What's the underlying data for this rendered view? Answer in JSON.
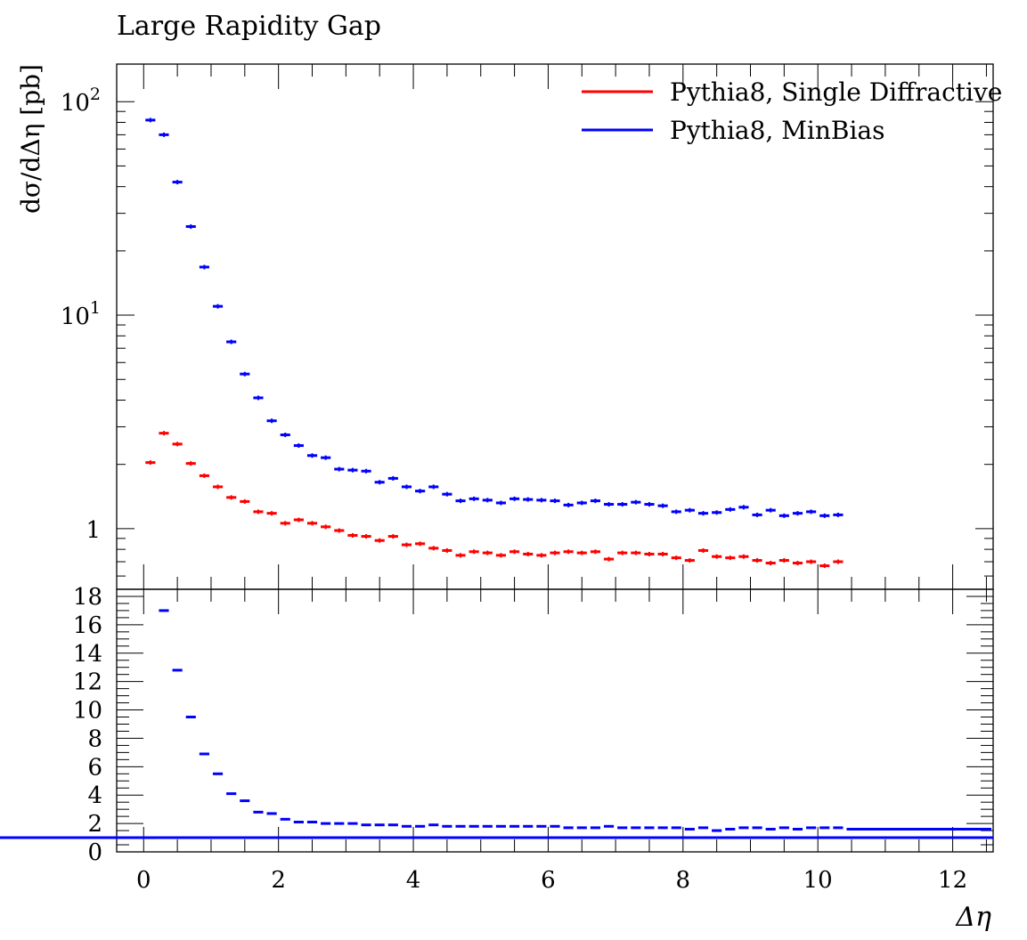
{
  "title": "Large Rapidity Gap",
  "chart_data": {
    "type": "line",
    "title": "Large Rapidity Gap",
    "xlabel": "Δη",
    "ylabel": "dσ/dΔη [pb]",
    "xlim": [
      -0.4,
      12.6
    ],
    "x_ticks": [
      "0",
      "2",
      "4",
      "6",
      "8",
      "10",
      "12"
    ],
    "legend_position": "top-right",
    "main": {
      "yscale": "log",
      "ylim": [
        0.52,
        150
      ],
      "y_ticks": [
        {
          "value": 1,
          "label": "1"
        },
        {
          "value": 10,
          "label": "10^1"
        },
        {
          "value": 100,
          "label": "10^2"
        }
      ],
      "bin_edges": [
        0.0,
        0.2,
        0.4,
        0.6,
        0.8,
        1.0,
        1.2,
        1.4,
        1.6,
        1.8,
        2.0,
        2.2,
        2.4,
        2.6,
        2.8,
        3.0,
        3.2,
        3.4,
        3.6,
        3.8,
        4.0,
        4.2,
        4.4,
        4.6,
        4.8,
        5.0,
        5.2,
        5.4,
        5.6,
        5.8,
        6.0,
        6.2,
        6.4,
        6.6,
        6.8,
        7.0,
        7.2,
        7.4,
        7.6,
        7.8,
        8.0,
        8.2,
        8.4,
        8.6,
        8.8,
        9.0,
        9.2,
        9.4,
        9.6,
        9.8,
        10.0,
        10.2,
        10.4
      ],
      "series": [
        {
          "name": "Pythia8, Single Diffractive",
          "color": "#ff0000",
          "values": [
            2.04,
            2.8,
            2.49,
            2.02,
            1.77,
            1.57,
            1.4,
            1.34,
            1.2,
            1.18,
            1.06,
            1.1,
            1.06,
            1.02,
            0.98,
            0.93,
            0.92,
            0.88,
            0.92,
            0.84,
            0.85,
            0.81,
            0.79,
            0.75,
            0.78,
            0.77,
            0.75,
            0.78,
            0.76,
            0.75,
            0.77,
            0.78,
            0.77,
            0.78,
            0.72,
            0.77,
            0.77,
            0.76,
            0.76,
            0.73,
            0.71,
            0.79,
            0.74,
            0.73,
            0.74,
            0.71,
            0.69,
            0.71,
            0.69,
            0.7,
            0.67,
            0.7
          ]
        },
        {
          "name": "Pythia8, MinBias",
          "color": "#0000ff",
          "values": [
            82,
            70,
            42,
            26,
            16.8,
            11,
            7.5,
            5.3,
            4.1,
            3.2,
            2.75,
            2.45,
            2.2,
            2.15,
            1.9,
            1.88,
            1.86,
            1.65,
            1.72,
            1.57,
            1.5,
            1.57,
            1.45,
            1.35,
            1.38,
            1.36,
            1.32,
            1.38,
            1.37,
            1.36,
            1.35,
            1.29,
            1.32,
            1.35,
            1.3,
            1.3,
            1.33,
            1.3,
            1.28,
            1.2,
            1.22,
            1.18,
            1.19,
            1.23,
            1.26,
            1.16,
            1.22,
            1.15,
            1.18,
            1.2,
            1.15,
            1.16
          ]
        }
      ]
    },
    "ratio": {
      "ylim": [
        0,
        18.5
      ],
      "y_ticks": [
        0,
        2,
        4,
        6,
        8,
        10,
        12,
        14,
        16,
        18
      ],
      "reference_line": {
        "value": 1,
        "color": "#006400"
      },
      "series": {
        "color": "#0000ff",
        "bin_edges": [
          0.0,
          0.2,
          0.4,
          0.6,
          0.8,
          1.0,
          1.2,
          1.4,
          1.6,
          1.8,
          2.0,
          2.2,
          2.4,
          2.6,
          2.8,
          3.0,
          3.2,
          3.4,
          3.6,
          3.8,
          4.0,
          4.2,
          4.4,
          4.6,
          4.8,
          5.0,
          5.2,
          5.4,
          5.6,
          5.8,
          6.0,
          6.2,
          6.4,
          6.6,
          6.8,
          7.0,
          7.2,
          7.4,
          7.6,
          7.8,
          8.0,
          8.2,
          8.4,
          8.6,
          8.8,
          9.0,
          9.2,
          9.4,
          9.6,
          9.8,
          10.0,
          10.2,
          10.4,
          12.6
        ],
        "values": [
          1.0,
          17.0,
          12.8,
          9.5,
          6.9,
          5.5,
          4.1,
          3.6,
          2.8,
          2.7,
          2.3,
          2.1,
          2.1,
          2.0,
          2.0,
          2.0,
          1.9,
          1.9,
          1.9,
          1.8,
          1.8,
          1.9,
          1.8,
          1.8,
          1.8,
          1.8,
          1.8,
          1.8,
          1.8,
          1.8,
          1.8,
          1.7,
          1.7,
          1.7,
          1.8,
          1.7,
          1.7,
          1.7,
          1.7,
          1.7,
          1.6,
          1.7,
          1.5,
          1.6,
          1.7,
          1.7,
          1.6,
          1.7,
          1.6,
          1.7,
          1.7,
          1.7,
          1.6,
          1.0
        ]
      }
    }
  }
}
